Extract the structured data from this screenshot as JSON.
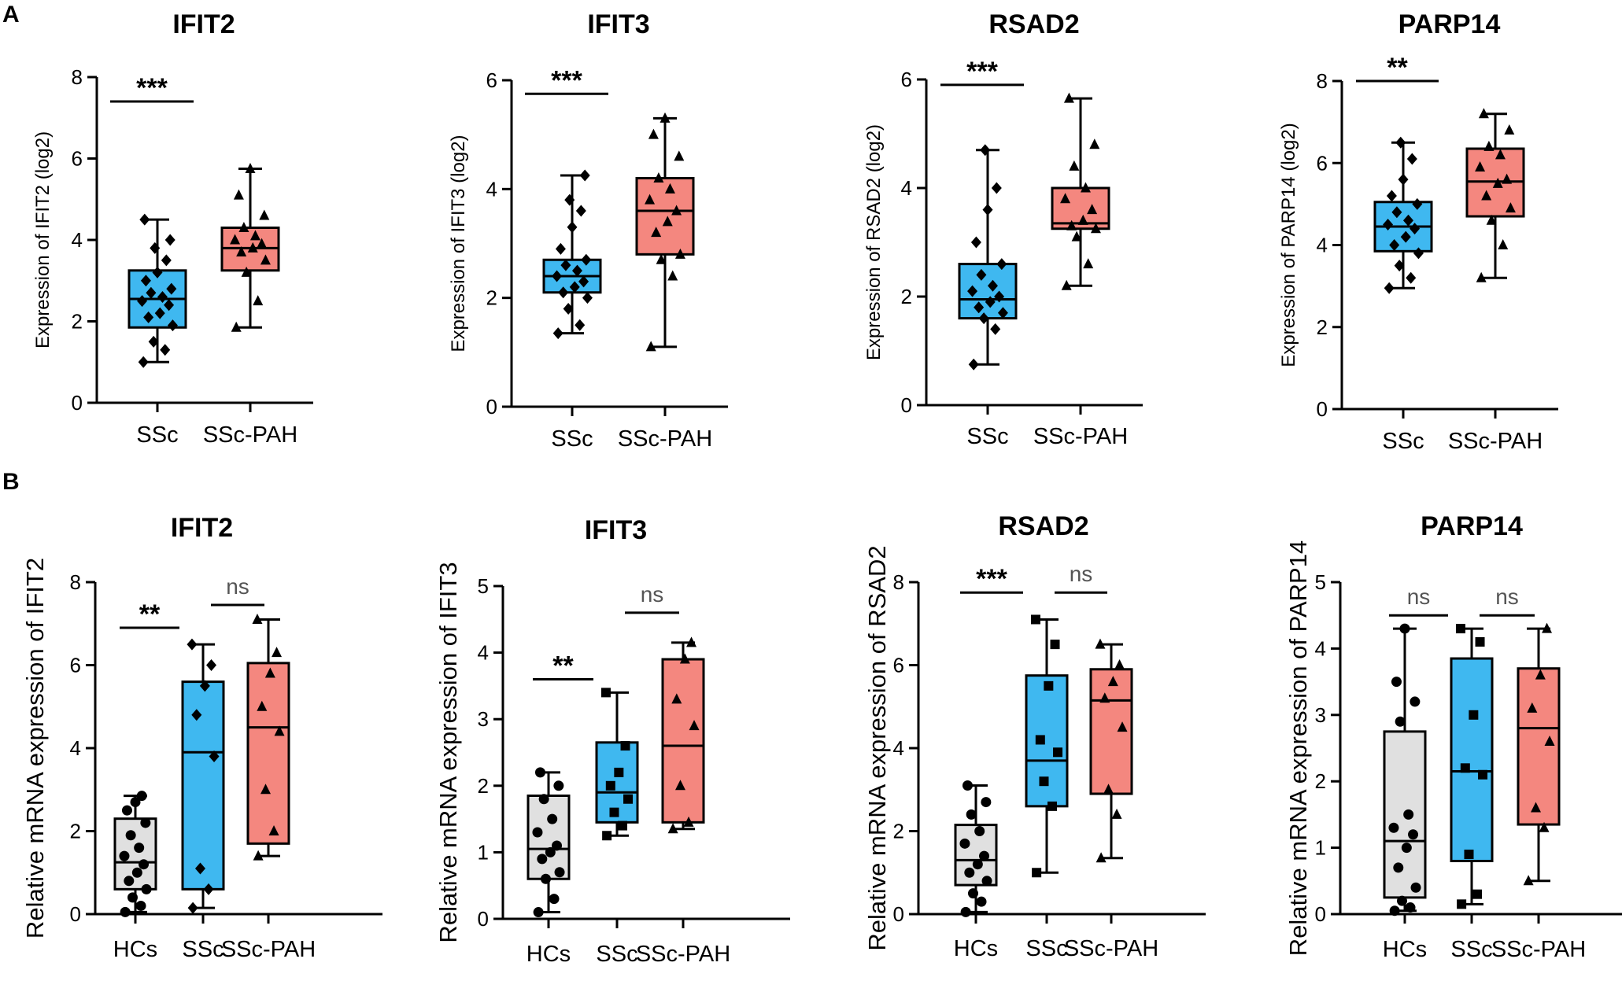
{
  "panel_labels": {
    "a": "A",
    "b": "B"
  },
  "colors": {
    "hcs": "#e0e0e0",
    "ssc": "#3fb8f0",
    "sscpah": "#f4877f",
    "ink": "#000000"
  },
  "chart_data": [
    {
      "id": "A1",
      "type": "box",
      "title": "IFIT2",
      "ylabel": "Expression of IFIT2 (log2)",
      "ylim": [
        0,
        8
      ],
      "yticks": [
        0,
        2,
        4,
        6,
        8
      ],
      "categories": [
        "SSc",
        "SSc-PAH"
      ],
      "groups": [
        {
          "name": "SSc",
          "color": "ssc",
          "marker": "diamond",
          "min": 1.0,
          "q1": 1.85,
          "median": 2.55,
          "q3": 3.25,
          "max": 4.5,
          "points": [
            1.0,
            1.3,
            1.5,
            1.9,
            2.1,
            2.2,
            2.4,
            2.5,
            2.6,
            2.7,
            2.8,
            3.0,
            3.2,
            3.5,
            3.8,
            4.0,
            4.5
          ]
        },
        {
          "name": "SSc-PAH",
          "color": "sscpah",
          "marker": "triangle",
          "min": 1.85,
          "q1": 3.25,
          "median": 3.8,
          "q3": 4.3,
          "max": 5.75,
          "points": [
            1.85,
            2.5,
            3.2,
            3.5,
            3.7,
            3.8,
            3.9,
            4.0,
            4.1,
            4.3,
            4.6,
            5.1,
            5.75
          ]
        }
      ],
      "sig": [
        {
          "from": 0,
          "to": 1,
          "label": "***",
          "y": 7.4
        }
      ]
    },
    {
      "id": "A2",
      "type": "box",
      "title": "IFIT3",
      "ylabel": "Expression of IFIT3 (log2)",
      "ylim": [
        0,
        6
      ],
      "yticks": [
        0,
        2,
        4,
        6
      ],
      "categories": [
        "SSc",
        "SSc-PAH"
      ],
      "groups": [
        {
          "name": "SSc",
          "color": "ssc",
          "marker": "diamond",
          "min": 1.35,
          "q1": 2.1,
          "median": 2.4,
          "q3": 2.7,
          "max": 4.25,
          "points": [
            1.35,
            1.5,
            1.8,
            2.0,
            2.1,
            2.2,
            2.3,
            2.4,
            2.5,
            2.6,
            2.7,
            2.9,
            3.3,
            3.6,
            3.8,
            4.25
          ]
        },
        {
          "name": "SSc-PAH",
          "color": "sscpah",
          "marker": "triangle",
          "min": 1.1,
          "q1": 2.8,
          "median": 3.6,
          "q3": 4.2,
          "max": 5.3,
          "points": [
            1.1,
            2.4,
            2.7,
            2.8,
            3.2,
            3.4,
            3.6,
            3.8,
            4.0,
            4.2,
            4.6,
            5.0,
            5.3
          ]
        }
      ],
      "sig": [
        {
          "from": 0,
          "to": 1,
          "label": "***",
          "y": 5.75
        }
      ]
    },
    {
      "id": "A3",
      "type": "box",
      "title": "RSAD2",
      "ylabel": "Expression of RSAD2 (log2)",
      "ylim": [
        0,
        6
      ],
      "yticks": [
        0,
        2,
        4,
        6
      ],
      "categories": [
        "SSc",
        "SSc-PAH"
      ],
      "groups": [
        {
          "name": "SSc",
          "color": "ssc",
          "marker": "diamond",
          "min": 0.75,
          "q1": 1.6,
          "median": 1.95,
          "q3": 2.6,
          "max": 4.7,
          "points": [
            0.75,
            1.4,
            1.6,
            1.7,
            1.8,
            1.9,
            2.0,
            2.1,
            2.2,
            2.4,
            2.6,
            3.0,
            3.6,
            4.0,
            4.7
          ]
        },
        {
          "name": "SSc-PAH",
          "color": "sscpah",
          "marker": "triangle",
          "min": 2.2,
          "q1": 3.25,
          "median": 3.35,
          "q3": 4.0,
          "max": 5.65,
          "points": [
            2.2,
            2.6,
            3.1,
            3.25,
            3.3,
            3.4,
            3.6,
            3.8,
            4.0,
            4.4,
            4.8,
            5.65
          ]
        }
      ],
      "sig": [
        {
          "from": 0,
          "to": 1,
          "label": "***",
          "y": 5.9
        }
      ]
    },
    {
      "id": "A4",
      "type": "box",
      "title": "PARP14",
      "ylabel": "Expression of PARP14 (log2)",
      "ylim": [
        0,
        8
      ],
      "yticks": [
        0,
        2,
        4,
        6,
        8
      ],
      "categories": [
        "SSc",
        "SSc-PAH"
      ],
      "groups": [
        {
          "name": "SSc",
          "color": "ssc",
          "marker": "diamond",
          "min": 2.95,
          "q1": 3.85,
          "median": 4.45,
          "q3": 5.05,
          "max": 6.5,
          "points": [
            2.95,
            3.2,
            3.5,
            3.8,
            4.0,
            4.2,
            4.4,
            4.5,
            4.6,
            4.8,
            5.0,
            5.2,
            5.6,
            6.1,
            6.5
          ]
        },
        {
          "name": "SSc-PAH",
          "color": "sscpah",
          "marker": "triangle",
          "min": 3.2,
          "q1": 4.7,
          "median": 5.55,
          "q3": 6.35,
          "max": 7.2,
          "points": [
            3.2,
            4.0,
            4.6,
            4.9,
            5.2,
            5.5,
            5.6,
            5.9,
            6.2,
            6.4,
            6.8,
            7.2
          ]
        }
      ],
      "sig": [
        {
          "from": 0,
          "to": 1,
          "label": "**",
          "y": 8.0
        }
      ]
    },
    {
      "id": "B1",
      "type": "box",
      "title": "IFIT2",
      "ylabel": "Relative mRNA expression of IFIT2",
      "ylim": [
        0,
        8
      ],
      "yticks": [
        0,
        2,
        4,
        6,
        8
      ],
      "categories": [
        "HCs",
        "SSc",
        "SSc-PAH"
      ],
      "groups": [
        {
          "name": "HCs",
          "color": "hcs",
          "marker": "circle",
          "min": 0.05,
          "q1": 0.6,
          "median": 1.25,
          "q3": 2.3,
          "max": 2.85,
          "points": [
            0.05,
            0.2,
            0.4,
            0.6,
            0.8,
            1.0,
            1.2,
            1.4,
            1.6,
            1.9,
            2.2,
            2.5,
            2.7,
            2.85
          ]
        },
        {
          "name": "SSc",
          "color": "ssc",
          "marker": "diamond",
          "min": 0.15,
          "q1": 0.6,
          "median": 3.9,
          "q3": 5.6,
          "max": 6.5,
          "points": [
            0.15,
            0.6,
            1.1,
            3.8,
            4.8,
            5.5,
            6.0,
            6.5
          ]
        },
        {
          "name": "SSc-PAH",
          "color": "sscpah",
          "marker": "triangle",
          "min": 1.4,
          "q1": 1.7,
          "median": 4.5,
          "q3": 6.05,
          "max": 7.1,
          "points": [
            1.4,
            2.0,
            3.0,
            4.4,
            5.0,
            5.8,
            6.3,
            7.1
          ]
        }
      ],
      "sig": [
        {
          "from": 0,
          "to": 1,
          "label": "**",
          "y": 6.9
        },
        {
          "from": 1,
          "to": 2,
          "label": "ns",
          "y": 7.45
        }
      ]
    },
    {
      "id": "B2",
      "type": "box",
      "title": "IFIT3",
      "ylabel": "Relative mRNA expression of IFIT3",
      "ylim": [
        0,
        5
      ],
      "yticks": [
        0,
        1,
        2,
        3,
        4,
        5
      ],
      "categories": [
        "HCs",
        "SSc",
        "SSc-PAH"
      ],
      "groups": [
        {
          "name": "HCs",
          "color": "hcs",
          "marker": "circle",
          "min": 0.1,
          "q1": 0.6,
          "median": 1.05,
          "q3": 1.85,
          "max": 2.2,
          "points": [
            0.1,
            0.3,
            0.6,
            0.7,
            0.9,
            1.0,
            1.1,
            1.3,
            1.5,
            1.8,
            2.0,
            2.2
          ]
        },
        {
          "name": "SSc",
          "color": "ssc",
          "marker": "square",
          "min": 1.25,
          "q1": 1.45,
          "median": 1.9,
          "q3": 2.65,
          "max": 3.4,
          "points": [
            1.25,
            1.4,
            1.6,
            1.8,
            2.0,
            2.2,
            2.6,
            3.4
          ]
        },
        {
          "name": "SSc-PAH",
          "color": "sscpah",
          "marker": "triangle",
          "min": 1.35,
          "q1": 1.45,
          "median": 2.6,
          "q3": 3.9,
          "max": 4.15,
          "points": [
            1.35,
            1.45,
            2.0,
            2.9,
            3.3,
            3.9,
            4.15
          ]
        }
      ],
      "sig": [
        {
          "from": 0,
          "to": 1,
          "label": "**",
          "y": 3.6
        },
        {
          "from": 1,
          "to": 2,
          "label": "ns",
          "y": 4.6
        }
      ]
    },
    {
      "id": "B3",
      "type": "box",
      "title": "RSAD2",
      "ylabel": "Relative mRNA expression of RSAD2",
      "ylim": [
        0,
        8
      ],
      "yticks": [
        0,
        2,
        4,
        6,
        8
      ],
      "categories": [
        "HCs",
        "SSc",
        "SSc-PAH"
      ],
      "groups": [
        {
          "name": "HCs",
          "color": "hcs",
          "marker": "circle",
          "min": 0.05,
          "q1": 0.7,
          "median": 1.3,
          "q3": 2.15,
          "max": 3.1,
          "points": [
            0.05,
            0.3,
            0.5,
            0.8,
            1.0,
            1.2,
            1.4,
            1.7,
            2.0,
            2.4,
            2.7,
            3.1
          ]
        },
        {
          "name": "SSc",
          "color": "ssc",
          "marker": "square",
          "min": 1.0,
          "q1": 2.6,
          "median": 3.7,
          "q3": 5.75,
          "max": 7.1,
          "points": [
            1.0,
            2.6,
            3.2,
            3.9,
            4.2,
            5.5,
            6.5,
            7.1
          ]
        },
        {
          "name": "SSc-PAH",
          "color": "sscpah",
          "marker": "triangle",
          "min": 1.35,
          "q1": 2.9,
          "median": 5.15,
          "q3": 5.9,
          "max": 6.5,
          "points": [
            1.35,
            2.4,
            3.0,
            4.5,
            5.2,
            5.6,
            6.0,
            6.5
          ]
        }
      ],
      "sig": [
        {
          "from": 0,
          "to": 1,
          "label": "***",
          "y": 7.75
        },
        {
          "from": 1,
          "to": 2,
          "label": "ns",
          "y": 7.75
        }
      ]
    },
    {
      "id": "B4",
      "type": "box",
      "title": "PARP14",
      "ylabel": "Relative mRNA expression of PARP14",
      "ylim": [
        0,
        5
      ],
      "yticks": [
        0,
        1,
        2,
        3,
        4,
        5
      ],
      "categories": [
        "HCs",
        "SSc",
        "SSc-PAH"
      ],
      "groups": [
        {
          "name": "HCs",
          "color": "hcs",
          "marker": "circle",
          "min": 0.05,
          "q1": 0.25,
          "median": 1.1,
          "q3": 2.75,
          "max": 4.3,
          "points": [
            0.05,
            0.1,
            0.2,
            0.4,
            0.7,
            1.0,
            1.2,
            1.3,
            1.5,
            2.9,
            3.2,
            3.5,
            4.3
          ]
        },
        {
          "name": "SSc",
          "color": "ssc",
          "marker": "square",
          "min": 0.15,
          "q1": 0.8,
          "median": 2.15,
          "q3": 3.85,
          "max": 4.3,
          "points": [
            0.15,
            0.3,
            0.9,
            2.1,
            2.2,
            3.0,
            4.1,
            4.3
          ]
        },
        {
          "name": "SSc-PAH",
          "color": "sscpah",
          "marker": "triangle",
          "min": 0.5,
          "q1": 1.35,
          "median": 2.8,
          "q3": 3.7,
          "max": 4.3,
          "points": [
            0.5,
            1.3,
            1.6,
            2.6,
            3.1,
            3.6,
            4.3
          ]
        }
      ],
      "sig": [
        {
          "from": 0,
          "to": 1,
          "label": "ns",
          "y": 4.5
        },
        {
          "from": 1,
          "to": 2,
          "label": "ns",
          "y": 4.5
        }
      ]
    }
  ]
}
